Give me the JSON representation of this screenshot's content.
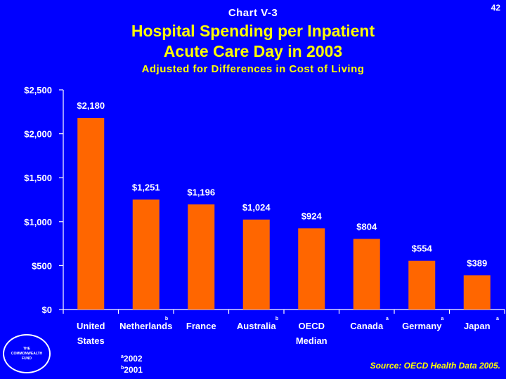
{
  "page": {
    "chart_label": "Chart V-3",
    "page_number": "42",
    "title_line1": "Hospital Spending per Inpatient",
    "title_line2": "Acute Care Day in 2003",
    "subtitle": "Adjusted for Differences in Cost of Living",
    "logo_line1": "THE",
    "logo_line2": "COMMONWEALTH",
    "logo_line3": "FUND",
    "note_a_mark": "a",
    "note_a_text": "2002",
    "note_b_mark": "b",
    "note_b_text": "2001",
    "source": "Source: OECD Health Data 2005."
  },
  "colors": {
    "background": "#0000FF",
    "bar": "#FF6600",
    "title": "#FFFF00",
    "text": "#FFFFFF"
  },
  "chart_data": {
    "type": "bar",
    "title": "Hospital Spending per Inpatient Acute Care Day in 2003",
    "subtitle": "Adjusted for Differences in Cost of Living",
    "xlabel": "",
    "ylabel": "",
    "ylim": [
      0,
      2500
    ],
    "yticks": [
      0,
      500,
      1000,
      1500,
      2000,
      2500
    ],
    "ytick_labels": [
      "$0",
      "$500",
      "$1,000",
      "$1,500",
      "$2,000",
      "$2,500"
    ],
    "categories": [
      {
        "line1": "United",
        "line2": "States",
        "note": ""
      },
      {
        "line1": "Netherlands",
        "line2": "",
        "note": "b"
      },
      {
        "line1": "France",
        "line2": "",
        "note": ""
      },
      {
        "line1": "Australia",
        "line2": "",
        "note": "b"
      },
      {
        "line1": "OECD",
        "line2": "Median",
        "note": ""
      },
      {
        "line1": "Canada",
        "line2": "",
        "note": "a"
      },
      {
        "line1": "Germany",
        "line2": "",
        "note": "a"
      },
      {
        "line1": "Japan",
        "line2": "",
        "note": "a"
      }
    ],
    "values": [
      2180,
      1251,
      1196,
      1024,
      924,
      804,
      554,
      389
    ],
    "data_labels": [
      "$2,180",
      "$1,251",
      "$1,196",
      "$1,024",
      "$924",
      "$804",
      "$554",
      "$389"
    ]
  }
}
